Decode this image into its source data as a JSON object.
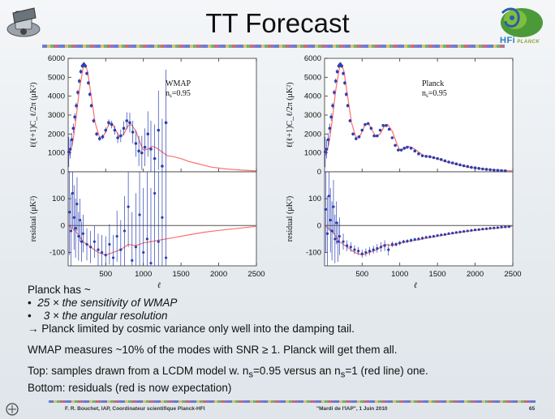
{
  "slide": {
    "title": "TT Forecast",
    "text": {
      "l1": "Planck has ~",
      "l2_bullet": "•",
      "l2": "25 × the sensitivity of WMAP",
      "l3_bullet": "•",
      "l3": "3 × the angular resolution",
      "l4": "→ Planck limited by cosmic variance only well into the damping tail.",
      "l5": "WMAP measures ~10% of the modes with SNR ≥ 1. Planck will get them all.",
      "l6_a": "Top: samples drawn from a LCDM model w. n",
      "l6_sub1": "s",
      "l6_b": "=0.95 versus an n",
      "l6_sub2": "s",
      "l6_c": "=1 (red line) one.",
      "l7": "Bottom: residuals (red is now expectation)"
    },
    "footer": {
      "author": "F. R. Bouchet, IAP, Coordinateur scientifique Planck-HFI",
      "event": "\"Mardi de l'IAP\", 1 Juin 2010",
      "page": "65"
    },
    "logo_right_text": "HFi",
    "logo_right_small": "PLANCK"
  },
  "chart_data": [
    {
      "type": "scatter",
      "panel": "top",
      "annotation": "WMAP",
      "annotation2": "n",
      "annotation2_sub": "s",
      "annotation2_val": "=0.95",
      "ylabel": "ℓ(ℓ+1)C_ℓ/2π (μK²)",
      "xlim": [
        2,
        2500
      ],
      "ylim": [
        0,
        6000
      ],
      "yticks": [
        0,
        1000,
        2000,
        3000,
        4000,
        5000,
        6000
      ],
      "model_line_color": "#ff6f6f",
      "points_color": "#2a3fb0",
      "model": {
        "x": [
          2,
          20,
          60,
          100,
          150,
          200,
          230,
          260,
          300,
          360,
          420,
          480,
          540,
          580,
          620,
          680,
          740,
          800,
          840,
          900,
          960,
          1000,
          1060,
          1120,
          1180,
          1250,
          1320,
          1400,
          1500,
          1600,
          1700,
          1800,
          1900,
          2000,
          2100,
          2200,
          2300,
          2400,
          2500
        ],
        "y": [
          1000,
          900,
          1500,
          2600,
          4300,
          5500,
          5650,
          5300,
          4200,
          2600,
          1800,
          1950,
          2500,
          2600,
          2300,
          1850,
          2000,
          2450,
          2500,
          2150,
          1500,
          1150,
          1200,
          1350,
          1250,
          1050,
          850,
          800,
          700,
          550,
          450,
          350,
          250,
          200,
          150,
          120,
          90,
          70,
          50
        ]
      },
      "points": {
        "x": [
          10,
          30,
          50,
          70,
          90,
          110,
          130,
          150,
          170,
          190,
          210,
          230,
          250,
          270,
          290,
          310,
          340,
          380,
          420,
          460,
          500,
          540,
          580,
          620,
          660,
          700,
          740,
          780,
          820,
          860,
          900,
          940,
          980,
          1020,
          1060,
          1100,
          1150,
          1200,
          1250,
          1300
        ],
        "y": [
          1050,
          1200,
          1700,
          2300,
          2900,
          3500,
          4200,
          4800,
          5300,
          5600,
          5700,
          5600,
          5200,
          4700,
          4100,
          3500,
          2700,
          2000,
          1750,
          1850,
          2200,
          2600,
          2500,
          2200,
          1800,
          1900,
          2300,
          2700,
          2600,
          2100,
          1500,
          1100,
          1000,
          1300,
          2000,
          1200,
          700,
          2200,
          300,
          2600
        ],
        "err": [
          800,
          500,
          350,
          250,
          200,
          150,
          140,
          130,
          120,
          110,
          110,
          110,
          110,
          110,
          110,
          110,
          110,
          110,
          120,
          130,
          150,
          170,
          200,
          240,
          280,
          330,
          380,
          450,
          520,
          600,
          700,
          800,
          900,
          1000,
          1200,
          1500,
          1800,
          2100,
          2500,
          2800
        ]
      }
    },
    {
      "type": "scatter",
      "panel": "bottom",
      "ylabel": "residual (μK²)",
      "xlabel": "ℓ",
      "xlim": [
        2,
        2500
      ],
      "ylim": [
        -150,
        200
      ],
      "yticks": [
        -100,
        0,
        100
      ],
      "xticks": [
        500,
        1000,
        1500,
        2000,
        2500
      ],
      "expectation": {
        "x": [
          2,
          100,
          200,
          300,
          400,
          500,
          600,
          700,
          800,
          900,
          1000,
          1200,
          1400,
          1600,
          1800,
          2000,
          2200,
          2400,
          2500
        ],
        "y": [
          0,
          -20,
          -60,
          -80,
          -100,
          -110,
          -100,
          -90,
          -70,
          -75,
          -65,
          -55,
          -45,
          -35,
          -25,
          -18,
          -12,
          -6,
          -3
        ]
      },
      "points": {
        "x": [
          20,
          40,
          60,
          80,
          100,
          120,
          140,
          160,
          180,
          200,
          250,
          300,
          350,
          400,
          450,
          500,
          550,
          600,
          650,
          700,
          750,
          800,
          850,
          900,
          950,
          1000,
          1050,
          1100,
          1150,
          1200,
          1250,
          1300
        ],
        "y": [
          50,
          -20,
          120,
          30,
          -10,
          80,
          -40,
          20,
          -60,
          -30,
          -70,
          -80,
          -60,
          -90,
          -100,
          -110,
          -70,
          -120,
          -40,
          -90,
          -20,
          70,
          -130,
          -80,
          40,
          -100,
          -50,
          -140,
          120,
          -60,
          30,
          -120
        ],
        "err": [
          160,
          140,
          130,
          120,
          110,
          100,
          90,
          80,
          75,
          70,
          60,
          60,
          60,
          60,
          65,
          70,
          75,
          85,
          95,
          110,
          130,
          150,
          180,
          200,
          220,
          240,
          260,
          280,
          300,
          320,
          340,
          360
        ]
      }
    },
    {
      "type": "scatter",
      "panel": "top",
      "annotation": "Planck",
      "annotation2": "n",
      "annotation2_sub": "s",
      "annotation2_val": "=0.95",
      "ylabel": "ℓ(ℓ+1)C_ℓ/2π (μK²)",
      "xlim": [
        2,
        2500
      ],
      "ylim": [
        0,
        6000
      ],
      "yticks": [
        0,
        1000,
        2000,
        3000,
        4000,
        5000,
        6000
      ],
      "model_line_color": "#ff6f6f",
      "points_color": "#2a3fb0",
      "model": {
        "x": [
          2,
          20,
          60,
          100,
          150,
          200,
          230,
          260,
          300,
          360,
          420,
          480,
          540,
          580,
          620,
          680,
          740,
          800,
          840,
          900,
          960,
          1000,
          1060,
          1120,
          1180,
          1250,
          1320,
          1400,
          1500,
          1600,
          1700,
          1800,
          1900,
          2000,
          2100,
          2200,
          2300,
          2400,
          2500
        ],
        "y": [
          1000,
          900,
          1500,
          2600,
          4300,
          5500,
          5650,
          5300,
          4200,
          2600,
          1800,
          1950,
          2500,
          2600,
          2300,
          1850,
          2000,
          2450,
          2500,
          2150,
          1500,
          1150,
          1200,
          1350,
          1250,
          1050,
          850,
          800,
          700,
          550,
          450,
          350,
          250,
          200,
          150,
          120,
          90,
          70,
          50
        ]
      },
      "points": {
        "x": [
          10,
          30,
          50,
          70,
          90,
          110,
          130,
          150,
          170,
          190,
          210,
          230,
          250,
          270,
          290,
          310,
          340,
          380,
          420,
          460,
          500,
          540,
          580,
          620,
          660,
          700,
          740,
          780,
          820,
          860,
          900,
          940,
          980,
          1020,
          1060,
          1100,
          1150,
          1200,
          1250,
          1300,
          1350,
          1400,
          1450,
          1500,
          1550,
          1600,
          1650,
          1700,
          1750,
          1800,
          1850,
          1900,
          1950,
          2000,
          2050,
          2100,
          2150,
          2200,
          2250,
          2300,
          2350,
          2400
        ],
        "y": [
          1050,
          1200,
          1700,
          2300,
          2900,
          3500,
          4200,
          4800,
          5300,
          5600,
          5700,
          5600,
          5200,
          4700,
          4100,
          3500,
          2700,
          2000,
          1750,
          1850,
          2200,
          2500,
          2550,
          2300,
          1900,
          1900,
          2200,
          2450,
          2450,
          2250,
          1800,
          1400,
          1150,
          1150,
          1250,
          1300,
          1250,
          1100,
          950,
          850,
          820,
          800,
          750,
          700,
          650,
          580,
          520,
          470,
          420,
          370,
          320,
          280,
          240,
          210,
          180,
          150,
          130,
          110,
          90,
          80,
          60,
          50
        ],
        "err": [
          800,
          500,
          350,
          250,
          200,
          150,
          140,
          130,
          120,
          110,
          110,
          110,
          110,
          110,
          110,
          100,
          90,
          80,
          70,
          60,
          60,
          60,
          60,
          60,
          60,
          60,
          60,
          60,
          60,
          60,
          60,
          50,
          50,
          50,
          50,
          50,
          50,
          50,
          50,
          40,
          40,
          40,
          40,
          40,
          40,
          40,
          40,
          30,
          30,
          30,
          30,
          30,
          30,
          30,
          30,
          30,
          30,
          30,
          30,
          30,
          30,
          30
        ]
      }
    },
    {
      "type": "scatter",
      "panel": "bottom",
      "ylabel": "residual (μK²)",
      "xlabel": "ℓ",
      "xlim": [
        2,
        2500
      ],
      "ylim": [
        -150,
        200
      ],
      "yticks": [
        -100,
        0,
        100
      ],
      "xticks": [
        500,
        1000,
        1500,
        2000,
        2500
      ],
      "expectation": {
        "x": [
          2,
          100,
          200,
          300,
          400,
          500,
          600,
          700,
          800,
          900,
          1000,
          1200,
          1400,
          1600,
          1800,
          2000,
          2200,
          2400,
          2500
        ],
        "y": [
          0,
          -20,
          -60,
          -80,
          -100,
          -110,
          -100,
          -90,
          -70,
          -75,
          -65,
          -55,
          -45,
          -35,
          -25,
          -18,
          -12,
          -6,
          -3
        ]
      },
      "points": {
        "x": [
          20,
          40,
          60,
          80,
          100,
          120,
          140,
          160,
          180,
          200,
          250,
          300,
          350,
          400,
          450,
          500,
          550,
          600,
          650,
          700,
          750,
          800,
          850,
          900,
          950,
          1000,
          1050,
          1100,
          1150,
          1200,
          1250,
          1300,
          1350,
          1400,
          1450,
          1500,
          1550,
          1600,
          1650,
          1700,
          1750,
          1800,
          1850,
          1900,
          1950,
          2000,
          2050,
          2100,
          2150,
          2200,
          2250,
          2300,
          2350,
          2400,
          2450
        ],
        "y": [
          60,
          -30,
          110,
          20,
          -20,
          70,
          -50,
          10,
          -60,
          -40,
          -60,
          -75,
          -80,
          -90,
          -95,
          -105,
          -100,
          -95,
          -90,
          -85,
          -80,
          -75,
          -90,
          -70,
          -70,
          -65,
          -60,
          -58,
          -55,
          -52,
          -50,
          -47,
          -44,
          -42,
          -40,
          -37,
          -35,
          -33,
          -30,
          -28,
          -26,
          -24,
          -22,
          -20,
          -18,
          -16,
          -15,
          -13,
          -12,
          -10,
          -9,
          -8,
          -6,
          -5,
          -4
        ],
        "err": [
          160,
          140,
          130,
          120,
          110,
          100,
          90,
          80,
          75,
          70,
          30,
          20,
          18,
          16,
          15,
          15,
          15,
          15,
          15,
          16,
          18,
          20,
          22,
          10,
          8,
          8,
          7,
          7,
          7,
          6,
          6,
          6,
          5,
          5,
          5,
          5,
          5,
          5,
          4,
          4,
          4,
          4,
          4,
          4,
          4,
          4,
          3,
          3,
          3,
          3,
          3,
          3,
          3,
          3,
          3
        ]
      }
    }
  ]
}
